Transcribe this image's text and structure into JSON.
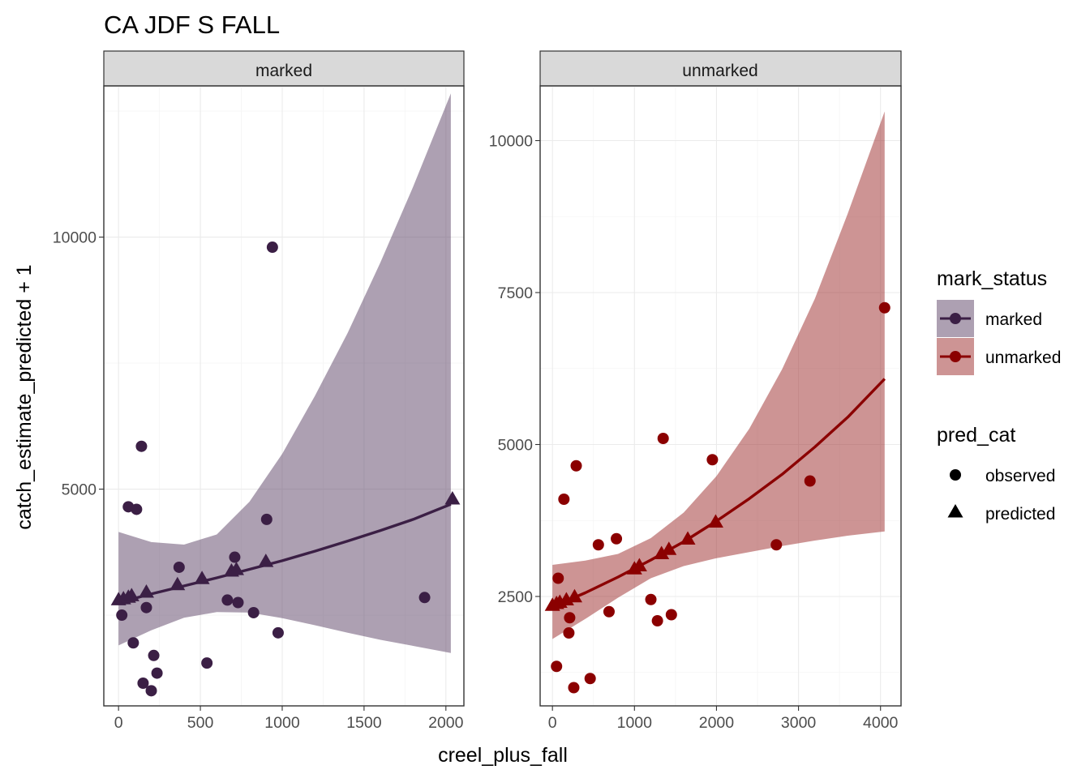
{
  "colors": {
    "marked": "#3b1f45",
    "unmarked": "#8b0000",
    "marked_band": "#5b4166",
    "unmarked_band": "#9c2a2a"
  },
  "chart_data": {
    "type": "scatter",
    "title": "CA JDF S FALL",
    "xlabel": "creel_plus_fall",
    "ylabel": "catch_estimate_predicted + 1",
    "legend": {
      "position": "right",
      "color_title": "mark_status",
      "color_entries": [
        "marked",
        "unmarked"
      ],
      "shape_title": "pred_cat",
      "shape_entries": [
        "observed",
        "predicted"
      ],
      "shape_icons": [
        "circle",
        "triangle"
      ]
    },
    "panels": [
      {
        "strip": "marked",
        "color_key": "marked",
        "xlim": [
          -90,
          2110
        ],
        "ylim": [
          700,
          13000
        ],
        "x_ticks": [
          0,
          500,
          1000,
          1500,
          2000
        ],
        "y_ticks": [
          5000,
          10000
        ],
        "observed": [
          {
            "x": 20,
            "y": 2500
          },
          {
            "x": 60,
            "y": 4650
          },
          {
            "x": 90,
            "y": 1950
          },
          {
            "x": 110,
            "y": 4600
          },
          {
            "x": 140,
            "y": 5850
          },
          {
            "x": 150,
            "y": 1150
          },
          {
            "x": 170,
            "y": 2650
          },
          {
            "x": 200,
            "y": 1000
          },
          {
            "x": 215,
            "y": 1700
          },
          {
            "x": 235,
            "y": 1350
          },
          {
            "x": 370,
            "y": 3450
          },
          {
            "x": 540,
            "y": 1550
          },
          {
            "x": 665,
            "y": 2800
          },
          {
            "x": 710,
            "y": 3650
          },
          {
            "x": 730,
            "y": 2750
          },
          {
            "x": 825,
            "y": 2550
          },
          {
            "x": 905,
            "y": 4400
          },
          {
            "x": 940,
            "y": 9800
          },
          {
            "x": 975,
            "y": 2150
          },
          {
            "x": 1870,
            "y": 2850
          }
        ],
        "predicted": [
          {
            "x": 0,
            "y": 2800
          },
          {
            "x": 30,
            "y": 2820
          },
          {
            "x": 60,
            "y": 2850
          },
          {
            "x": 80,
            "y": 2880
          },
          {
            "x": 170,
            "y": 2950
          },
          {
            "x": 360,
            "y": 3100
          },
          {
            "x": 510,
            "y": 3220
          },
          {
            "x": 690,
            "y": 3370
          },
          {
            "x": 720,
            "y": 3400
          },
          {
            "x": 900,
            "y": 3560
          },
          {
            "x": 2040,
            "y": 4800
          }
        ],
        "fit": {
          "x": [
            0,
            200,
            400,
            600,
            800,
            1000,
            1200,
            1400,
            1600,
            1800,
            2030
          ],
          "y": [
            2750,
            2920,
            3080,
            3240,
            3410,
            3580,
            3770,
            3970,
            4180,
            4400,
            4700
          ],
          "lower": [
            1900,
            2200,
            2450,
            2560,
            2550,
            2440,
            2300,
            2150,
            2010,
            1890,
            1750
          ],
          "upper": [
            4150,
            3950,
            3900,
            4100,
            4750,
            5700,
            6850,
            8100,
            9500,
            11000,
            12850
          ]
        }
      },
      {
        "strip": "unmarked",
        "color_key": "unmarked",
        "xlim": [
          -150,
          4250
        ],
        "ylim": [
          700,
          10900
        ],
        "x_ticks": [
          0,
          1000,
          2000,
          3000,
          4000
        ],
        "y_ticks": [
          2500,
          5000,
          7500,
          10000
        ],
        "observed": [
          {
            "x": 50,
            "y": 1350
          },
          {
            "x": 70,
            "y": 2800
          },
          {
            "x": 140,
            "y": 4100
          },
          {
            "x": 200,
            "y": 1900
          },
          {
            "x": 210,
            "y": 2150
          },
          {
            "x": 260,
            "y": 1000
          },
          {
            "x": 290,
            "y": 4650
          },
          {
            "x": 460,
            "y": 1150
          },
          {
            "x": 560,
            "y": 3350
          },
          {
            "x": 690,
            "y": 2250
          },
          {
            "x": 780,
            "y": 3450
          },
          {
            "x": 1200,
            "y": 2450
          },
          {
            "x": 1280,
            "y": 2100
          },
          {
            "x": 1350,
            "y": 5100
          },
          {
            "x": 1450,
            "y": 2200
          },
          {
            "x": 1950,
            "y": 4750
          },
          {
            "x": 2730,
            "y": 3350
          },
          {
            "x": 3140,
            "y": 4400
          },
          {
            "x": 4050,
            "y": 7250
          }
        ],
        "predicted": [
          {
            "x": 0,
            "y": 2350
          },
          {
            "x": 50,
            "y": 2380
          },
          {
            "x": 90,
            "y": 2400
          },
          {
            "x": 170,
            "y": 2440
          },
          {
            "x": 270,
            "y": 2490
          },
          {
            "x": 1000,
            "y": 2950
          },
          {
            "x": 1060,
            "y": 3000
          },
          {
            "x": 1330,
            "y": 3200
          },
          {
            "x": 1420,
            "y": 3270
          },
          {
            "x": 1650,
            "y": 3440
          },
          {
            "x": 1990,
            "y": 3720
          }
        ],
        "fit": {
          "x": [
            0,
            400,
            800,
            1200,
            1600,
            2000,
            2400,
            2800,
            3200,
            3600,
            4050
          ],
          "y": [
            2330,
            2560,
            2820,
            3100,
            3400,
            3740,
            4110,
            4510,
            4960,
            5450,
            6080
          ],
          "lower": [
            1800,
            2130,
            2480,
            2800,
            3000,
            3130,
            3230,
            3330,
            3420,
            3500,
            3570
          ],
          "upper": [
            3020,
            3090,
            3200,
            3460,
            3880,
            4480,
            5260,
            6240,
            7400,
            8800,
            10480
          ]
        }
      }
    ]
  }
}
